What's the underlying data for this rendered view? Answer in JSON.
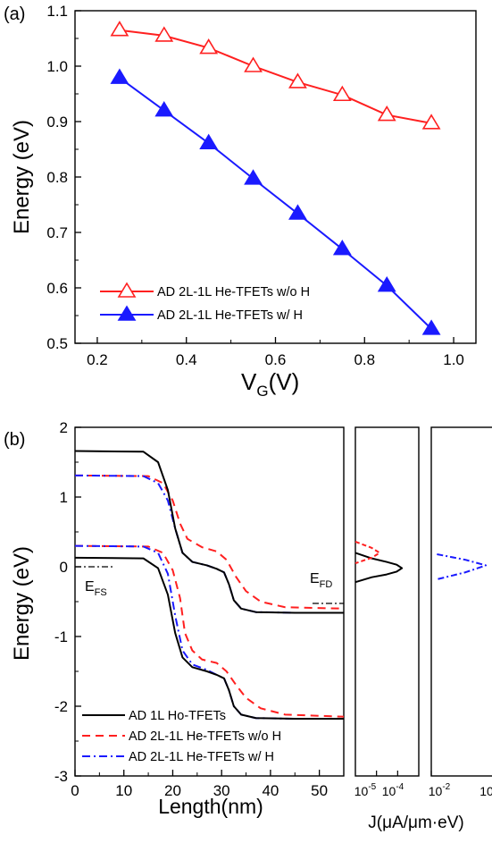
{
  "chart_data": [
    {
      "type": "line",
      "panel_label": "(a)",
      "xlabel": "V",
      "xlabel_sub": "G",
      "xlabel_suffix": "(V)",
      "ylabel": "Energy (eV)",
      "xlim": [
        0.15,
        1.05
      ],
      "ylim": [
        0.5,
        1.1
      ],
      "xticks": [
        "0.2",
        "0.4",
        "0.6",
        "0.8",
        "1.0"
      ],
      "yticks": [
        "0.5",
        "0.6",
        "0.7",
        "0.8",
        "0.9",
        "1.0",
        "1.1"
      ],
      "legend_position": "bottom-left",
      "grid": false,
      "x": [
        0.25,
        0.35,
        0.45,
        0.55,
        0.65,
        0.75,
        0.85,
        0.95
      ],
      "series": [
        {
          "name": "AD 2L-1L He-TFETs w/o H",
          "color": "#ff2020",
          "marker": "open-triangle",
          "values": [
            1.065,
            1.055,
            1.033,
            1.0,
            0.971,
            0.948,
            0.912,
            0.897
          ]
        },
        {
          "name": "AD 2L-1L He-TFETs w/ H",
          "color": "#1a1aff",
          "marker": "filled-triangle",
          "values": [
            0.979,
            0.92,
            0.861,
            0.797,
            0.734,
            0.67,
            0.604,
            0.526
          ]
        }
      ]
    },
    {
      "type": "line",
      "panel_label": "(b)",
      "xlabel": "Length(nm)",
      "ylabel": "Energy (eV)",
      "xlim": [
        0,
        55
      ],
      "ylim": [
        -3,
        2
      ],
      "xticks": [
        "0",
        "10",
        "20",
        "30",
        "40",
        "50"
      ],
      "yticks": [
        "-3",
        "-2",
        "-1",
        "0",
        "1",
        "2"
      ],
      "legend_position": "bottom-left",
      "grid": false,
      "annotations": {
        "efs": "E",
        "efs_sub": "FS",
        "efd": "E",
        "efd_sub": "FD"
      },
      "series": [
        {
          "name": "AD 1L Ho-TFETs",
          "color": "#000000",
          "dash": "solid",
          "conduction_band": [
            [
              0,
              1.66
            ],
            [
              14,
              1.65
            ],
            [
              17,
              1.5
            ],
            [
              19,
              1.1
            ],
            [
              20.5,
              0.55
            ],
            [
              22,
              0.2
            ],
            [
              24,
              0.07
            ],
            [
              27,
              0.02
            ],
            [
              29,
              -0.03
            ],
            [
              30.5,
              -0.08
            ],
            [
              31.5,
              -0.25
            ],
            [
              32.5,
              -0.48
            ],
            [
              34,
              -0.6
            ],
            [
              37,
              -0.65
            ],
            [
              45,
              -0.66
            ],
            [
              55,
              -0.66
            ]
          ],
          "valence_band": [
            [
              0,
              0.13
            ],
            [
              14,
              0.12
            ],
            [
              17,
              -0.02
            ],
            [
              19,
              -0.4
            ],
            [
              20.5,
              -0.95
            ],
            [
              22,
              -1.3
            ],
            [
              24,
              -1.44
            ],
            [
              27,
              -1.5
            ],
            [
              29,
              -1.55
            ],
            [
              30.5,
              -1.6
            ],
            [
              31.5,
              -1.77
            ],
            [
              32.5,
              -2.0
            ],
            [
              34,
              -2.12
            ],
            [
              37,
              -2.17
            ],
            [
              45,
              -2.18
            ],
            [
              55,
              -2.18
            ]
          ]
        },
        {
          "name": "AD 2L-1L He-TFETs w/o H",
          "color": "#ff2020",
          "dash": "dashed",
          "conduction_band": [
            [
              0,
              1.31
            ],
            [
              15,
              1.3
            ],
            [
              18,
              1.2
            ],
            [
              20,
              0.95
            ],
            [
              21.5,
              0.62
            ],
            [
              23,
              0.4
            ],
            [
              26,
              0.28
            ],
            [
              29,
              0.22
            ],
            [
              31,
              0.1
            ],
            [
              33,
              -0.15
            ],
            [
              35,
              -0.35
            ],
            [
              38,
              -0.5
            ],
            [
              43,
              -0.58
            ],
            [
              55,
              -0.6
            ]
          ],
          "valence_band": [
            [
              0,
              0.3
            ],
            [
              15,
              0.29
            ],
            [
              18,
              0.2
            ],
            [
              20,
              -0.05
            ],
            [
              21.5,
              -0.45
            ],
            [
              22.5,
              -0.95
            ],
            [
              24,
              -1.2
            ],
            [
              26,
              -1.33
            ],
            [
              29,
              -1.38
            ],
            [
              31,
              -1.5
            ],
            [
              33,
              -1.7
            ],
            [
              35,
              -1.88
            ],
            [
              38,
              -2.03
            ],
            [
              43,
              -2.12
            ],
            [
              55,
              -2.15
            ]
          ]
        },
        {
          "name": "AD 2L-1L He-TFETs w/ H",
          "color": "#1a1aff",
          "dash": "dashdot",
          "conduction_band": [
            [
              0,
              1.31
            ],
            [
              14,
              1.3
            ],
            [
              17,
              1.2
            ],
            [
              19,
              0.95
            ],
            [
              20.5,
              0.55
            ],
            [
              22,
              0.2
            ],
            [
              24,
              0.07
            ],
            [
              27,
              0.02
            ],
            [
              29,
              -0.03
            ],
            [
              30.5,
              -0.08
            ],
            [
              31.5,
              -0.25
            ],
            [
              32.5,
              -0.48
            ],
            [
              34,
              -0.6
            ],
            [
              37,
              -0.65
            ],
            [
              45,
              -0.66
            ],
            [
              55,
              -0.66
            ]
          ],
          "valence_band": [
            [
              0,
              0.3
            ],
            [
              14,
              0.29
            ],
            [
              17,
              0.2
            ],
            [
              19,
              -0.1
            ],
            [
              20.5,
              -0.7
            ],
            [
              22,
              -1.2
            ],
            [
              24,
              -1.4
            ],
            [
              27,
              -1.48
            ],
            [
              29,
              -1.55
            ],
            [
              30.5,
              -1.6
            ],
            [
              31.5,
              -1.77
            ],
            [
              32.5,
              -2.0
            ],
            [
              34,
              -2.12
            ],
            [
              37,
              -2.17
            ],
            [
              45,
              -2.18
            ],
            [
              55,
              -2.18
            ]
          ]
        }
      ]
    },
    {
      "type": "line",
      "panel_label": "",
      "xlabel": "J(μA/μm·eV)",
      "xscale": "log",
      "xlim": [
        1e-06,
        0.001
      ],
      "xticks": [
        "10",
        "10"
      ],
      "xtick_exp": [
        "-5",
        "-4"
      ],
      "ylim": [
        -3,
        2
      ],
      "series": [
        {
          "name": "AD 1L Ho-TFETs",
          "color": "#000000",
          "dash": "solid",
          "points": [
            [
              1e-06,
              0.2
            ],
            [
              6e-06,
              0.12
            ],
            [
              3e-05,
              0.07
            ],
            [
              9e-05,
              0.03
            ],
            [
              0.00016,
              -0.02
            ],
            [
              9e-05,
              -0.07
            ],
            [
              3e-05,
              -0.11
            ],
            [
              6e-06,
              -0.15
            ],
            [
              1e-06,
              -0.22
            ]
          ]
        },
        {
          "name": "AD 2L-1L He-TFETs w/o H",
          "color": "#ff2020",
          "dash": "dashed",
          "points": [
            [
              1e-06,
              0.36
            ],
            [
              6e-06,
              0.27
            ],
            [
              1.4e-05,
              0.2
            ],
            [
              6e-06,
              0.13
            ],
            [
              1e-06,
              0.05
            ]
          ]
        }
      ]
    },
    {
      "type": "line",
      "panel_label": "",
      "xscale": "log",
      "xlim": [
        0.01,
        0.1
      ],
      "xticks": [
        "10",
        "10"
      ],
      "xtick_exp": [
        "-2",
        ""
      ],
      "ylim": [
        -3,
        2
      ],
      "series": [
        {
          "name": "AD 2L-1L He-TFETs w/ H",
          "color": "#1a1aff",
          "dash": "dashdot",
          "points": [
            [
              0.012,
              0.18
            ],
            [
              0.03,
              0.1
            ],
            [
              0.058,
              0.02
            ],
            [
              0.03,
              -0.08
            ],
            [
              0.012,
              -0.18
            ]
          ]
        }
      ]
    }
  ]
}
